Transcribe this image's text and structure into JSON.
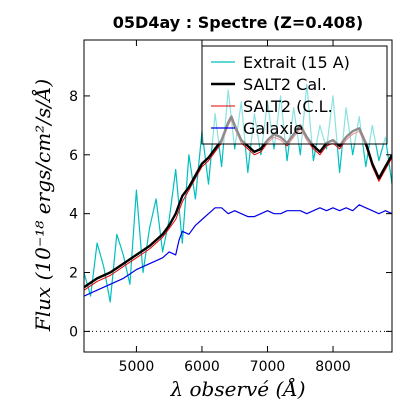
{
  "chart_data": {
    "type": "line",
    "title": "05D4ay : Spectre (Z=0.408)",
    "xlabel": "λ observé (Å)",
    "ylabel": "Flux (10⁻¹⁸ ergs/cm²/s/Å)",
    "xlim": [
      4200,
      8900
    ],
    "ylim": [
      -0.7,
      9.9
    ],
    "xticks": [
      5000,
      6000,
      7000,
      8000
    ],
    "yticks": [
      0,
      2,
      4,
      6,
      8
    ],
    "xtick_labels": [
      "5000",
      "6000",
      "7000",
      "8000"
    ],
    "ytick_labels": [
      "0",
      "2",
      "4",
      "6",
      "8"
    ],
    "hline": {
      "y": 0,
      "style": "dotted"
    },
    "legend": "top-right",
    "series": [
      {
        "name": "Extrait (15 A)",
        "color": "#00bfbf",
        "x": [
          4200,
          4300,
          4400,
          4500,
          4600,
          4700,
          4800,
          4900,
          5000,
          5100,
          5200,
          5300,
          5400,
          5500,
          5600,
          5700,
          5800,
          5900,
          6000,
          6100,
          6200,
          6300,
          6400,
          6500,
          6600,
          6700,
          6800,
          6900,
          7000,
          7100,
          7200,
          7300,
          7400,
          7500,
          7600,
          7700,
          7800,
          7900,
          8000,
          8100,
          8200,
          8300,
          8400,
          8500,
          8600,
          8700,
          8800,
          8900
        ],
        "y": [
          2.0,
          1.2,
          3.0,
          2.2,
          1.0,
          3.3,
          2.6,
          1.6,
          4.8,
          2.0,
          3.5,
          4.5,
          2.7,
          3.8,
          5.5,
          3.0,
          6.0,
          4.5,
          6.8,
          5.0,
          7.4,
          5.6,
          8.2,
          6.2,
          7.8,
          5.4,
          7.4,
          6.0,
          7.8,
          6.2,
          8.0,
          5.8,
          7.6,
          6.0,
          8.4,
          5.8,
          7.0,
          6.2,
          8.0,
          5.4,
          7.6,
          6.0,
          7.3,
          5.6,
          7.0,
          5.8,
          6.6,
          5.0
        ]
      },
      {
        "name": "SALT2 Cal.",
        "color": "#000000",
        "x": [
          4200,
          4400,
          4600,
          4800,
          5000,
          5200,
          5400,
          5500,
          5600,
          5700,
          5800,
          5900,
          6000,
          6100,
          6200,
          6300,
          6400,
          6450,
          6500,
          6600,
          6700,
          6800,
          6900,
          7000,
          7100,
          7200,
          7300,
          7400,
          7500,
          7600,
          7700,
          7800,
          7900,
          8000,
          8100,
          8200,
          8300,
          8400,
          8500,
          8600,
          8700,
          8800,
          8900
        ],
        "y": [
          1.5,
          1.8,
          2.0,
          2.3,
          2.6,
          2.9,
          3.3,
          3.6,
          4.0,
          4.6,
          4.9,
          5.3,
          5.7,
          5.9,
          6.2,
          6.5,
          7.1,
          7.3,
          7.0,
          6.5,
          6.3,
          6.1,
          6.2,
          6.5,
          6.7,
          6.6,
          6.4,
          6.7,
          7.0,
          6.6,
          6.3,
          6.1,
          6.4,
          6.5,
          6.3,
          6.6,
          6.8,
          6.9,
          6.4,
          5.7,
          5.2,
          5.6,
          6.0
        ]
      },
      {
        "name": "SALT2 (C.L.",
        "color": "#e60000",
        "x": [
          4200,
          4400,
          4600,
          4800,
          5000,
          5200,
          5400,
          5500,
          5600,
          5700,
          5800,
          5900,
          6000,
          6100,
          6200,
          6300,
          6400,
          6450,
          6500,
          6600,
          6700,
          6800,
          6900,
          7000,
          7100,
          7200,
          7300,
          7400,
          7500,
          7600,
          7700,
          7800,
          7900,
          8000,
          8100,
          8200,
          8300,
          8400,
          8500,
          8600,
          8700,
          8800,
          8900
        ],
        "y": [
          1.4,
          1.7,
          1.9,
          2.2,
          2.5,
          2.8,
          3.2,
          3.5,
          3.8,
          4.4,
          4.8,
          5.2,
          5.6,
          5.8,
          6.1,
          6.4,
          7.0,
          7.2,
          6.9,
          6.4,
          6.2,
          6.0,
          6.1,
          6.4,
          6.6,
          6.5,
          6.3,
          6.6,
          6.9,
          6.5,
          6.2,
          6.0,
          6.3,
          6.4,
          6.2,
          6.5,
          6.7,
          6.8,
          6.3,
          5.6,
          5.1,
          5.5,
          5.9
        ]
      },
      {
        "name": "Galaxie",
        "color": "#0000e6",
        "x": [
          4200,
          4400,
          4600,
          4800,
          5000,
          5200,
          5400,
          5500,
          5600,
          5650,
          5700,
          5800,
          5900,
          6000,
          6100,
          6200,
          6300,
          6400,
          6500,
          6600,
          6700,
          6800,
          6900,
          7000,
          7100,
          7200,
          7300,
          7400,
          7500,
          7600,
          7700,
          7800,
          7900,
          8000,
          8100,
          8200,
          8300,
          8400,
          8500,
          8600,
          8700,
          8800,
          8900
        ],
        "y": [
          1.2,
          1.4,
          1.6,
          1.8,
          2.1,
          2.3,
          2.5,
          2.7,
          2.6,
          3.1,
          3.4,
          3.3,
          3.6,
          3.8,
          4.0,
          4.2,
          4.2,
          4.0,
          4.1,
          4.0,
          3.9,
          3.9,
          4.0,
          4.1,
          4.0,
          4.0,
          4.1,
          4.1,
          4.1,
          4.0,
          4.1,
          4.2,
          4.1,
          4.2,
          4.1,
          4.2,
          4.1,
          4.3,
          4.2,
          4.1,
          4.0,
          4.1,
          4.0
        ]
      }
    ]
  }
}
